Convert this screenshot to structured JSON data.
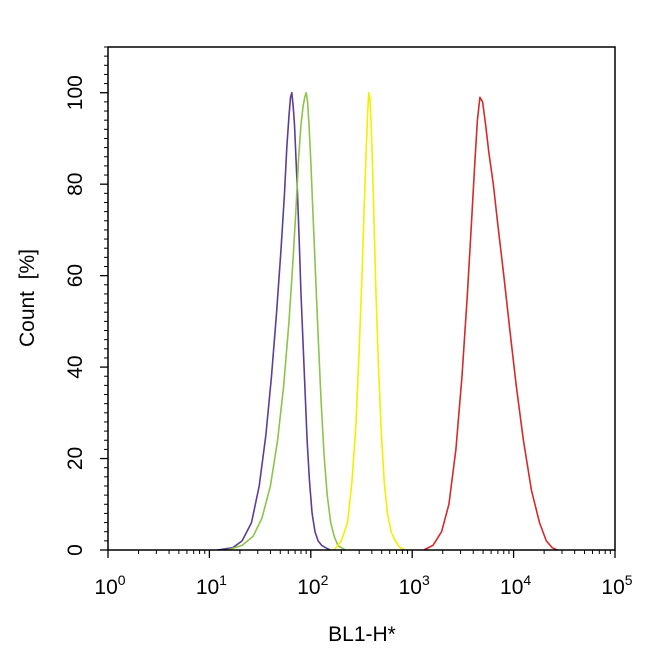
{
  "chart_data": {
    "type": "line",
    "title": "",
    "xlabel": "BL1-H*",
    "ylabel": "Count  [%]",
    "x_scale": "log",
    "xlim": [
      1,
      100000
    ],
    "ylim": [
      0,
      110
    ],
    "x_ticks": [
      {
        "value": 1,
        "base": "10",
        "exp": "0"
      },
      {
        "value": 10,
        "base": "10",
        "exp": "1"
      },
      {
        "value": 100,
        "base": "10",
        "exp": "2"
      },
      {
        "value": 1000,
        "base": "10",
        "exp": "3"
      },
      {
        "value": 10000,
        "base": "10",
        "exp": "4"
      },
      {
        "value": 100000,
        "base": "10",
        "exp": "5"
      }
    ],
    "y_ticks": [
      "0",
      "20",
      "40",
      "60",
      "80",
      "100"
    ],
    "grid": false,
    "legend": "none",
    "series": [
      {
        "color": "#5b3e96",
        "x": [
          12,
          17,
          21,
          26,
          31,
          36,
          41,
          46,
          51,
          55,
          58,
          61,
          63,
          65,
          67,
          69,
          71,
          74,
          77,
          80,
          84,
          88,
          92,
          97,
          103,
          110,
          118,
          128,
          140,
          155
        ],
        "y": [
          0,
          0.5,
          2,
          6,
          14,
          25,
          38,
          52,
          66,
          78,
          88,
          95,
          99,
          100,
          97,
          93,
          87,
          78,
          67,
          56,
          45,
          34,
          24,
          15,
          8,
          4,
          2,
          1,
          0.5,
          0
        ]
      },
      {
        "color": "#8cc44a",
        "x": [
          15,
          21,
          27,
          33,
          40,
          47,
          54,
          61,
          67,
          72,
          76,
          80,
          84,
          87,
          90,
          93,
          96,
          100,
          105,
          111,
          118,
          126,
          135,
          145,
          157,
          170,
          185,
          200,
          220
        ],
        "y": [
          0,
          1,
          3,
          7,
          14,
          24,
          36,
          50,
          64,
          76,
          86,
          93,
          97,
          99,
          100,
          98,
          93,
          85,
          74,
          61,
          47,
          33,
          21,
          12,
          6,
          3,
          1,
          0.5,
          0
        ]
      },
      {
        "color": "#f0f000",
        "x": [
          170,
          200,
          230,
          255,
          280,
          300,
          320,
          335,
          350,
          362,
          372,
          382,
          392,
          405,
          420,
          440,
          465,
          495,
          530,
          570,
          620,
          680,
          760,
          850
        ],
        "y": [
          0,
          2,
          6,
          15,
          28,
          44,
          60,
          74,
          86,
          95,
          100,
          99,
          94,
          85,
          72,
          56,
          40,
          26,
          15,
          8,
          4,
          2,
          0.5,
          0
        ]
      },
      {
        "color": "#d42a2a",
        "x": [
          1300,
          1600,
          1950,
          2300,
          2700,
          3100,
          3500,
          3850,
          4150,
          4400,
          4650,
          4950,
          5300,
          5700,
          6300,
          7000,
          8000,
          9200,
          10600,
          12500,
          15000,
          18000,
          21000,
          24000,
          27000
        ],
        "y": [
          0,
          1,
          4,
          10,
          22,
          38,
          56,
          72,
          85,
          94,
          99,
          98,
          93,
          87,
          80,
          71,
          60,
          48,
          36,
          24,
          13,
          6,
          2,
          0.5,
          0
        ]
      }
    ]
  }
}
